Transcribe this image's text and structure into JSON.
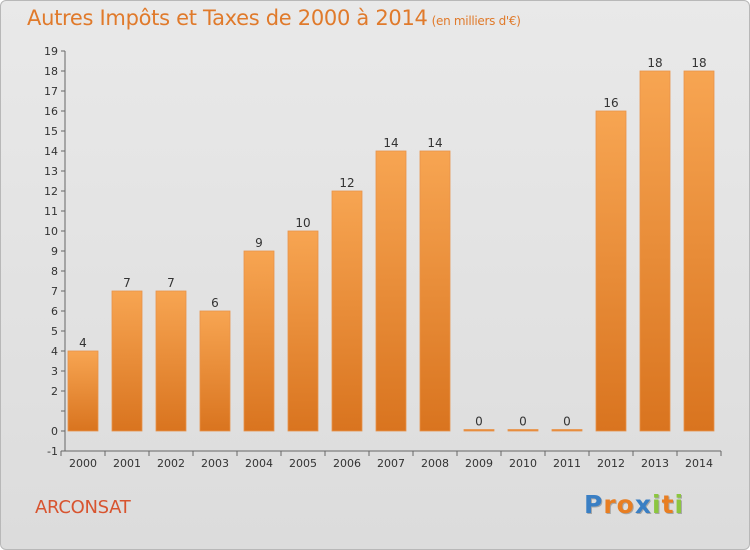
{
  "chart_data": {
    "type": "bar",
    "title": "Autres Impôts et Taxes de 2000 à 2014",
    "subtitle": "(en milliers d'€)",
    "categories": [
      "2000",
      "2001",
      "2002",
      "2003",
      "2004",
      "2005",
      "2006",
      "2007",
      "2008",
      "2009",
      "2010",
      "2011",
      "2012",
      "2013",
      "2014"
    ],
    "values": [
      4,
      7,
      7,
      6,
      9,
      10,
      12,
      14,
      14,
      0,
      0,
      0,
      16,
      18,
      18
    ],
    "ylim": [
      -1,
      19
    ],
    "yticks": [
      "-1",
      "0",
      "",
      "2",
      "3",
      "4",
      "5",
      "6",
      "7",
      "8",
      "9",
      "10",
      "11",
      "12",
      "13",
      "14",
      "15",
      "16",
      "17",
      "18",
      "19"
    ],
    "xlabel": "",
    "ylabel": "",
    "grid": false,
    "bar_color": "#f0922f"
  },
  "footer": {
    "commune": "ARCONSAT",
    "logo": [
      "P",
      "r",
      "o",
      "x",
      "i",
      "t",
      "i"
    ],
    "logo_colors": [
      "#3a7fc4",
      "#e87e22",
      "#e87e22",
      "#3a7fc4",
      "#8cc63f",
      "#e87e22",
      "#8cc63f"
    ]
  }
}
